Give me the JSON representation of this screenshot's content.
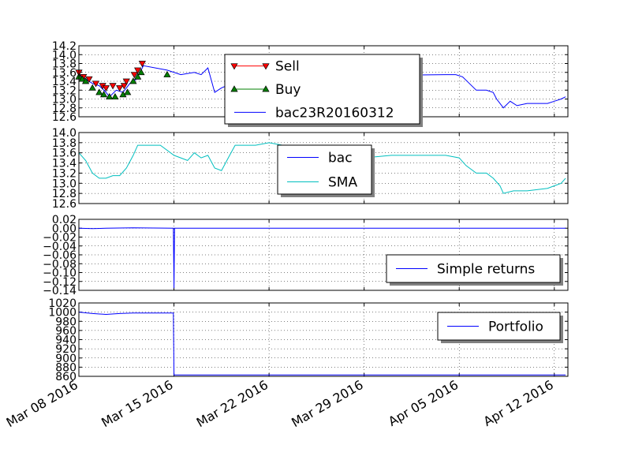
{
  "x_ticks": [
    "Mar 08 2016",
    "Mar 15 2016",
    "Mar 22 2016",
    "Mar 29 2016",
    "Apr 05 2016",
    "Apr 12 2016"
  ],
  "chart_data": [
    {
      "type": "line",
      "ylim": [
        12.6,
        14.2
      ],
      "y_ticks": [
        "14.2",
        "14.0",
        "13.8",
        "13.6",
        "13.4",
        "13.2",
        "13.0",
        "12.8",
        "12.6"
      ],
      "grid": true,
      "legend": {
        "placement": "top-center",
        "entries": [
          "Sell",
          "Buy",
          "bac23R20160312"
        ]
      },
      "colors": {
        "price": "#0000ff",
        "sell": "#ff0000",
        "buy": "#008000"
      },
      "series": [
        {
          "name": "bac23R20160312",
          "points": [
            [
              "2016-03-08 00:00",
              13.55
            ],
            [
              "2016-03-08 12:00",
              13.45
            ],
            [
              "2016-03-09 00:00",
              13.35
            ],
            [
              "2016-03-09 12:00",
              13.3
            ],
            [
              "2016-03-10 00:00",
              13.15
            ],
            [
              "2016-03-10 06:00",
              13.05
            ],
            [
              "2016-03-10 18:00",
              13.2
            ],
            [
              "2016-03-11 06:00",
              13.15
            ],
            [
              "2016-03-11 18:00",
              13.35
            ],
            [
              "2016-03-12 06:00",
              13.45
            ],
            [
              "2016-03-12 18:00",
              13.75
            ],
            [
              "2016-03-14 12:00",
              13.65
            ],
            [
              "2016-03-15 12:00",
              13.55
            ],
            [
              "2016-03-16 12:00",
              13.6
            ],
            [
              "2016-03-17 00:00",
              13.55
            ],
            [
              "2016-03-17 12:00",
              13.7
            ],
            [
              "2016-03-18 00:00",
              13.15
            ],
            [
              "2016-03-18 12:00",
              13.25
            ],
            [
              "2016-03-19 06:00",
              13.35
            ],
            [
              "2016-03-19 18:00",
              13.5
            ],
            [
              "2016-04-04 00:00",
              13.55
            ],
            [
              "2016-04-04 18:00",
              13.55
            ],
            [
              "2016-04-05 06:00",
              13.5
            ],
            [
              "2016-04-05 18:00",
              13.35
            ],
            [
              "2016-04-06 06:00",
              13.2
            ],
            [
              "2016-04-07 00:00",
              13.2
            ],
            [
              "2016-04-07 12:00",
              13.15
            ],
            [
              "2016-04-07 18:00",
              13.0
            ],
            [
              "2016-04-08 06:00",
              12.8
            ],
            [
              "2016-04-08 18:00",
              12.95
            ],
            [
              "2016-04-09 06:00",
              12.85
            ],
            [
              "2016-04-10 00:00",
              12.9
            ],
            [
              "2016-04-11 12:00",
              12.9
            ],
            [
              "2016-04-12 00:00",
              12.95
            ],
            [
              "2016-04-12 12:00",
              13.0
            ],
            [
              "2016-04-12 20:00",
              13.05
            ]
          ]
        },
        {
          "name": "Sell",
          "points": [
            [
              "2016-03-08 00:00",
              13.6
            ],
            [
              "2016-03-08 08:00",
              13.5
            ],
            [
              "2016-03-08 18:00",
              13.45
            ],
            [
              "2016-03-09 06:00",
              13.35
            ],
            [
              "2016-03-09 18:00",
              13.3
            ],
            [
              "2016-03-10 00:00",
              13.25
            ],
            [
              "2016-03-10 12:00",
              13.3
            ],
            [
              "2016-03-11 00:00",
              13.25
            ],
            [
              "2016-03-11 08:00",
              13.3
            ],
            [
              "2016-03-11 12:00",
              13.4
            ],
            [
              "2016-03-12 02:00",
              13.55
            ],
            [
              "2016-03-12 08:00",
              13.65
            ],
            [
              "2016-03-12 16:00",
              13.8
            ]
          ]
        },
        {
          "name": "Buy",
          "points": [
            [
              "2016-03-08 00:00",
              13.5
            ],
            [
              "2016-03-08 06:00",
              13.45
            ],
            [
              "2016-03-08 12:00",
              13.4
            ],
            [
              "2016-03-09 00:00",
              13.25
            ],
            [
              "2016-03-09 12:00",
              13.15
            ],
            [
              "2016-03-09 20:00",
              13.1
            ],
            [
              "2016-03-10 06:00",
              13.05
            ],
            [
              "2016-03-10 16:00",
              13.05
            ],
            [
              "2016-03-11 06:00",
              13.1
            ],
            [
              "2016-03-11 14:00",
              13.15
            ],
            [
              "2016-03-12 00:00",
              13.4
            ],
            [
              "2016-03-12 08:00",
              13.5
            ],
            [
              "2016-03-12 14:00",
              13.6
            ],
            [
              "2016-03-14 12:00",
              13.55
            ]
          ]
        }
      ]
    },
    {
      "type": "line",
      "ylim": [
        12.6,
        14.0
      ],
      "y_ticks": [
        "14.0",
        "13.8",
        "13.6",
        "13.4",
        "13.2",
        "13.0",
        "12.8",
        "12.6"
      ],
      "grid": true,
      "legend": {
        "placement": "center",
        "entries": [
          "bac",
          "SMA"
        ]
      },
      "colors": {
        "bac": "#0000ff",
        "SMA": "#00bfbf"
      },
      "series": [
        {
          "name": "SMA",
          "points": [
            [
              "2016-03-08 00:00",
              13.6
            ],
            [
              "2016-03-08 12:00",
              13.45
            ],
            [
              "2016-03-09 00:00",
              13.2
            ],
            [
              "2016-03-09 12:00",
              13.1
            ],
            [
              "2016-03-10 00:00",
              13.1
            ],
            [
              "2016-03-10 12:00",
              13.15
            ],
            [
              "2016-03-11 00:00",
              13.15
            ],
            [
              "2016-03-11 12:00",
              13.3
            ],
            [
              "2016-03-12 00:00",
              13.55
            ],
            [
              "2016-03-12 08:00",
              13.75
            ],
            [
              "2016-03-14 00:00",
              13.75
            ],
            [
              "2016-03-15 00:00",
              13.55
            ],
            [
              "2016-03-16 00:00",
              13.45
            ],
            [
              "2016-03-16 12:00",
              13.6
            ],
            [
              "2016-03-17 00:00",
              13.5
            ],
            [
              "2016-03-17 12:00",
              13.55
            ],
            [
              "2016-03-18 00:00",
              13.3
            ],
            [
              "2016-03-18 12:00",
              13.25
            ],
            [
              "2016-03-19 00:00",
              13.5
            ],
            [
              "2016-03-19 12:00",
              13.75
            ],
            [
              "2016-03-21 00:00",
              13.75
            ],
            [
              "2016-03-22 00:00",
              13.8
            ],
            [
              "2016-03-23 00:00",
              13.75
            ],
            [
              "2016-03-26 00:00",
              13.55
            ],
            [
              "2016-03-29 00:00",
              13.5
            ],
            [
              "2016-03-31 00:00",
              13.55
            ],
            [
              "2016-04-04 00:00",
              13.55
            ],
            [
              "2016-04-05 00:00",
              13.5
            ],
            [
              "2016-04-05 12:00",
              13.35
            ],
            [
              "2016-04-06 06:00",
              13.2
            ],
            [
              "2016-04-07 00:00",
              13.2
            ],
            [
              "2016-04-07 12:00",
              13.1
            ],
            [
              "2016-04-08 00:00",
              12.95
            ],
            [
              "2016-04-08 06:00",
              12.8
            ],
            [
              "2016-04-09 00:00",
              12.85
            ],
            [
              "2016-04-10 00:00",
              12.85
            ],
            [
              "2016-04-11 12:00",
              12.9
            ],
            [
              "2016-04-12 00:00",
              12.95
            ],
            [
              "2016-04-12 12:00",
              13.0
            ],
            [
              "2016-04-12 20:00",
              13.1
            ]
          ]
        }
      ]
    },
    {
      "type": "line",
      "ylim": [
        -0.14,
        0.02
      ],
      "y_ticks": [
        "0.02",
        "0.00",
        "−0.02",
        "−0.04",
        "−0.06",
        "−0.08",
        "−0.10",
        "−0.12",
        "−0.14"
      ],
      "grid": true,
      "legend": {
        "placement": "bottom-right",
        "entries": [
          "Simple returns"
        ]
      },
      "colors": {
        "Simple returns": "#0000ff"
      },
      "series": [
        {
          "name": "Simple returns",
          "points": [
            [
              "2016-03-08 00:00",
              0.0
            ],
            [
              "2016-03-09 00:00",
              -0.001
            ],
            [
              "2016-03-10 00:00",
              0.0
            ],
            [
              "2016-03-12 00:00",
              0.001
            ],
            [
              "2016-03-14 23:00",
              0.0
            ],
            [
              "2016-03-15 00:00",
              -0.135
            ],
            [
              "2016-03-15 01:00",
              0.0
            ],
            [
              "2016-04-12 20:00",
              0.0
            ]
          ]
        }
      ]
    },
    {
      "type": "line",
      "ylim": [
        860,
        1020
      ],
      "y_ticks": [
        "1020",
        "1000",
        "980",
        "960",
        "940",
        "920",
        "900",
        "880",
        "860"
      ],
      "grid": true,
      "legend": {
        "placement": "top-right",
        "entries": [
          "Portfolio"
        ]
      },
      "colors": {
        "Portfolio": "#0000ff"
      },
      "series": [
        {
          "name": "Portfolio",
          "points": [
            [
              "2016-03-08 00:00",
              1000
            ],
            [
              "2016-03-09 00:00",
              997
            ],
            [
              "2016-03-10 00:00",
              995
            ],
            [
              "2016-03-11 00:00",
              997
            ],
            [
              "2016-03-12 00:00",
              998
            ],
            [
              "2016-03-14 23:00",
              998
            ],
            [
              "2016-03-15 00:00",
              863
            ],
            [
              "2016-04-12 20:00",
              863
            ]
          ]
        }
      ]
    }
  ]
}
